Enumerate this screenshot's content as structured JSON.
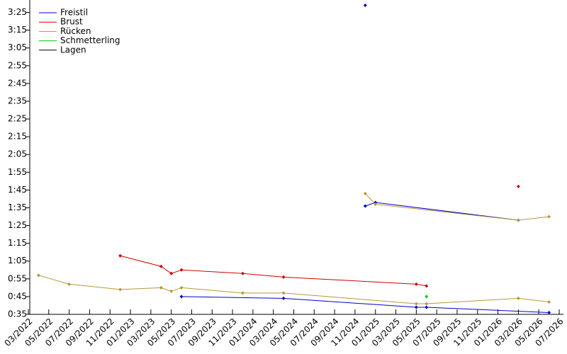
{
  "chart_data": {
    "type": "line",
    "xlim": [
      "2022-03",
      "2026-07"
    ],
    "xticks": [
      {
        "value": "2022-03",
        "label": "03/2022"
      },
      {
        "value": "2022-05",
        "label": "05/2022"
      },
      {
        "value": "2022-07",
        "label": "07/2022"
      },
      {
        "value": "2022-09",
        "label": "09/2022"
      },
      {
        "value": "2022-11",
        "label": "11/2022"
      },
      {
        "value": "2023-01",
        "label": "01/2023"
      },
      {
        "value": "2023-03",
        "label": "03/2023"
      },
      {
        "value": "2023-05",
        "label": "05/2023"
      },
      {
        "value": "2023-07",
        "label": "07/2023"
      },
      {
        "value": "2023-09",
        "label": "09/2023"
      },
      {
        "value": "2023-11",
        "label": "11/2023"
      },
      {
        "value": "2024-01",
        "label": "01/2024"
      },
      {
        "value": "2024-03",
        "label": "03/2024"
      },
      {
        "value": "2024-05",
        "label": "05/2024"
      },
      {
        "value": "2024-07",
        "label": "07/2024"
      },
      {
        "value": "2024-09",
        "label": "09/2024"
      },
      {
        "value": "2024-11",
        "label": "11/2024"
      },
      {
        "value": "2025-01",
        "label": "01/2025"
      },
      {
        "value": "2025-03",
        "label": "03/2025"
      },
      {
        "value": "2025-05",
        "label": "05/2025"
      },
      {
        "value": "2025-07",
        "label": "07/2025"
      },
      {
        "value": "2025-09",
        "label": "09/2025"
      },
      {
        "value": "2025-11",
        "label": "11/2025"
      },
      {
        "value": "2026-01",
        "label": "01/2026"
      },
      {
        "value": "2026-03",
        "label": "03/2026"
      },
      {
        "value": "2026-05",
        "label": "05/2026"
      },
      {
        "value": "2026-07",
        "label": "07/2026"
      }
    ],
    "ylim": [
      35,
      212
    ],
    "yticks": [
      {
        "value": 35,
        "label": "0:35"
      },
      {
        "value": 45,
        "label": "0:45"
      },
      {
        "value": 55,
        "label": "0:55"
      },
      {
        "value": 65,
        "label": "1:05"
      },
      {
        "value": 75,
        "label": "1:15"
      },
      {
        "value": 85,
        "label": "1:25"
      },
      {
        "value": 95,
        "label": "1:35"
      },
      {
        "value": 105,
        "label": "1:45"
      },
      {
        "value": 115,
        "label": "1:55"
      },
      {
        "value": 125,
        "label": "2:05"
      },
      {
        "value": 135,
        "label": "2:15"
      },
      {
        "value": 145,
        "label": "2:25"
      },
      {
        "value": 155,
        "label": "2:35"
      },
      {
        "value": 165,
        "label": "2:45"
      },
      {
        "value": 175,
        "label": "2:55"
      },
      {
        "value": 185,
        "label": "3:05"
      },
      {
        "value": 195,
        "label": "3:15"
      },
      {
        "value": 205,
        "label": "3:25"
      }
    ],
    "grid": false,
    "legend": "top-left",
    "series": [
      {
        "name": "Freistil",
        "color": "#0000cc",
        "x": [
          "2023-06",
          "2024-04",
          "2025-05",
          "2025-06",
          "2026-06",
          null,
          "2024-12",
          "2025-01",
          "2026-03",
          null,
          "2024-12"
        ],
        "values": [
          45,
          44,
          39,
          39,
          36,
          null,
          96,
          98,
          88,
          null,
          209
        ]
      },
      {
        "name": "Brust",
        "color": "#cc0000",
        "x": [
          "2022-12",
          "2023-04",
          "2023-05",
          "2023-06",
          "2023-12",
          "2024-04",
          "2025-05",
          "2025-06",
          null,
          "2026-03"
        ],
        "values": [
          68,
          62,
          58,
          60,
          58,
          56,
          52,
          51,
          null,
          107
        ]
      },
      {
        "name": "Rücken",
        "color": "#b8963a",
        "x": [
          "2022-04",
          "2022-07",
          "2022-12",
          "2023-04",
          "2023-05",
          "2023-06",
          "2023-12",
          "2024-04",
          "2025-05",
          "2025-06",
          "2026-03",
          "2026-06",
          null,
          "2024-12",
          "2025-01",
          "2026-03",
          "2026-06"
        ],
        "values": [
          57,
          52,
          49,
          50,
          48,
          50,
          47,
          47,
          41,
          41,
          44,
          42,
          null,
          103,
          97,
          88,
          90
        ]
      },
      {
        "name": "Schmetterling",
        "color": "#00cc00",
        "x": [
          "2025-06"
        ],
        "values": [
          45
        ]
      },
      {
        "name": "Lagen",
        "color": "#000000",
        "x": [],
        "values": []
      }
    ]
  }
}
